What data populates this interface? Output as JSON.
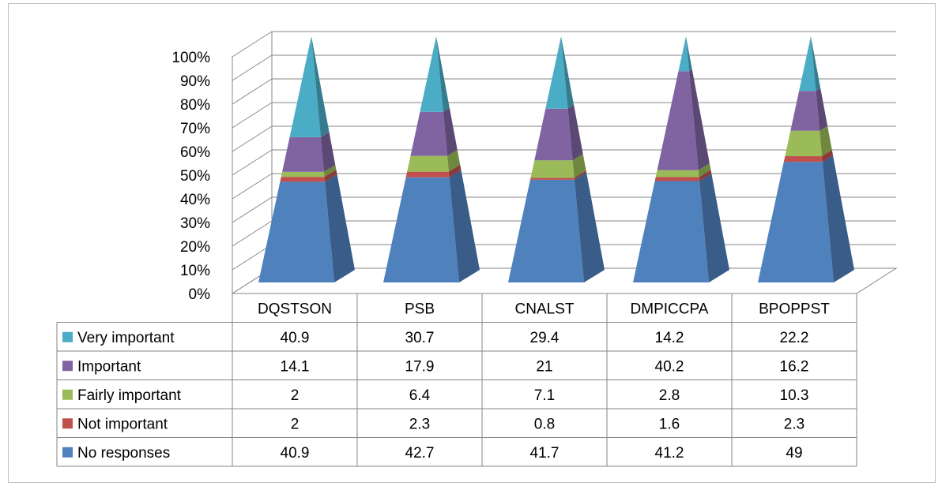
{
  "chart_data": {
    "type": "bar",
    "subtype": "stacked-100-pyramid-3d",
    "categories": [
      "DQSTSON",
      "PSB",
      "CNALST",
      "DMPICCPA",
      "BPOPPST"
    ],
    "series": [
      {
        "name": "No responses",
        "color": "#4f81bd",
        "values": [
          40.9,
          42.7,
          41.7,
          41.2,
          49
        ]
      },
      {
        "name": "Not important",
        "color": "#c0504d",
        "values": [
          2,
          2.3,
          0.8,
          1.6,
          2.3
        ]
      },
      {
        "name": "Fairly important",
        "color": "#9bbb59",
        "values": [
          2,
          6.4,
          7.1,
          2.8,
          10.3
        ]
      },
      {
        "name": "Important",
        "color": "#8064a2",
        "values": [
          14.1,
          17.9,
          21,
          40.2,
          16.2
        ]
      },
      {
        "name": "Very important",
        "color": "#4bacc6",
        "values": [
          40.9,
          30.7,
          29.4,
          14.2,
          22.2
        ]
      }
    ],
    "y_ticks": [
      "0%",
      "10%",
      "20%",
      "30%",
      "40%",
      "50%",
      "60%",
      "70%",
      "80%",
      "90%",
      "100%"
    ],
    "ylim": [
      0,
      100
    ],
    "table_rows": [
      {
        "label": "Very important",
        "values": [
          "40.9",
          "30.7",
          "29.4",
          "14.2",
          "22.2"
        ]
      },
      {
        "label": "Important",
        "values": [
          "14.1",
          "17.9",
          "21",
          "40.2",
          "16.2"
        ]
      },
      {
        "label": "Fairly important",
        "values": [
          "2",
          "6.4",
          "7.1",
          "2.8",
          "10.3"
        ]
      },
      {
        "label": "Not important",
        "values": [
          "2",
          "2.3",
          "0.8",
          "1.6",
          "2.3"
        ]
      },
      {
        "label": "No responses",
        "values": [
          "40.9",
          "42.7",
          "41.7",
          "41.2",
          "49"
        ]
      }
    ],
    "grid": true,
    "legend": "data-table"
  }
}
